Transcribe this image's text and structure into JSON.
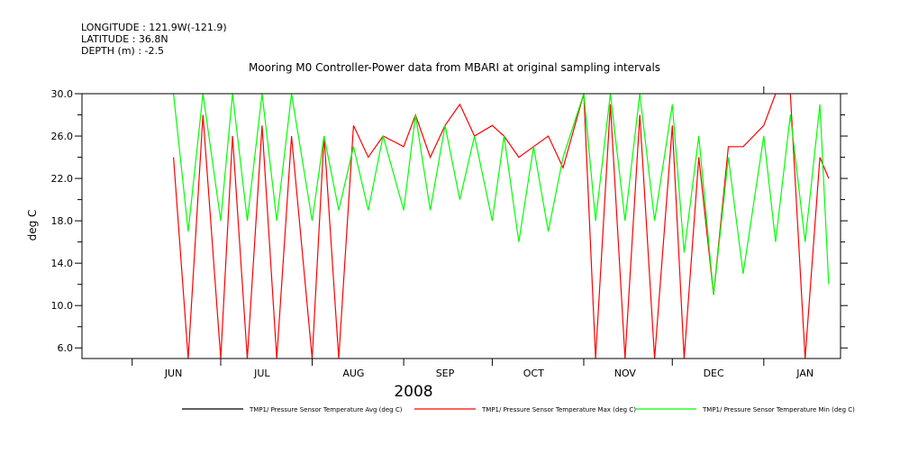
{
  "header": {
    "longitude": "LONGITUDE : 121.9W(-121.9)",
    "latitude": "LATITUDE : 36.8N",
    "depth": "DEPTH (m) : -2.5"
  },
  "chart_data": {
    "type": "line",
    "title": "Mooring M0 Controller-Power data from MBARI at original sampling intervals",
    "xlabel": "2008",
    "ylabel": "deg C",
    "ylim": [
      5,
      30
    ],
    "x_range": [
      "2008-05-15",
      "2009-01-27"
    ],
    "yticks": [
      "6.0",
      "10.0",
      "14.0",
      "18.0",
      "22.0",
      "26.0",
      "30.0"
    ],
    "xticks": [
      {
        "label": "JUN",
        "date": "2008-06-15"
      },
      {
        "label": "JUL",
        "date": "2008-07-15"
      },
      {
        "label": "AUG",
        "date": "2008-08-15"
      },
      {
        "label": "SEP",
        "date": "2008-09-15"
      },
      {
        "label": "OCT",
        "date": "2008-10-15"
      },
      {
        "label": "NOV",
        "date": "2008-11-15"
      },
      {
        "label": "DEC",
        "date": "2008-12-15"
      },
      {
        "label": "JAN",
        "date": "2009-01-15"
      }
    ],
    "legend_position": "bottom",
    "series": [
      {
        "name": "TMP1/ Pressure Sensor Temperature Avg (deg C)",
        "color": "#000000",
        "dates": [],
        "values": []
      },
      {
        "name": "TMP1/ Pressure Sensor Temperature Max (deg C)",
        "color": "#ff0000",
        "dates": [
          "2008-06-15",
          "2008-06-20",
          "2008-06-25",
          "2008-07-01",
          "2008-07-05",
          "2008-07-10",
          "2008-07-15",
          "2008-07-20",
          "2008-07-25",
          "2008-08-01",
          "2008-08-05",
          "2008-08-10",
          "2008-08-15",
          "2008-08-20",
          "2008-08-25",
          "2008-09-01",
          "2008-09-05",
          "2008-09-10",
          "2008-09-15",
          "2008-09-20",
          "2008-09-25",
          "2008-10-01",
          "2008-10-05",
          "2008-10-10",
          "2008-10-15",
          "2008-10-20",
          "2008-10-25",
          "2008-11-01",
          "2008-11-05",
          "2008-11-10",
          "2008-11-15",
          "2008-11-20",
          "2008-11-25",
          "2008-12-01",
          "2008-12-05",
          "2008-12-10",
          "2008-12-15",
          "2008-12-20",
          "2008-12-25",
          "2009-01-01",
          "2009-01-05",
          "2009-01-10",
          "2009-01-15",
          "2009-01-20",
          "2009-01-23"
        ],
        "values": [
          24,
          5,
          28,
          5,
          26,
          5,
          27,
          5,
          26,
          5,
          26,
          5,
          27,
          24,
          26,
          25,
          28,
          24,
          27,
          29,
          26,
          27,
          26,
          24,
          25,
          26,
          23,
          30,
          5,
          29,
          5,
          28,
          5,
          27,
          5,
          24,
          11,
          25,
          25,
          27,
          30,
          30,
          5,
          24,
          22
        ]
      },
      {
        "name": "TMP1/ Pressure Sensor Temperature Min (deg C)",
        "color": "#00ff00",
        "dates": [
          "2008-06-15",
          "2008-06-20",
          "2008-06-25",
          "2008-07-01",
          "2008-07-05",
          "2008-07-10",
          "2008-07-15",
          "2008-07-20",
          "2008-07-25",
          "2008-08-01",
          "2008-08-05",
          "2008-08-10",
          "2008-08-15",
          "2008-08-20",
          "2008-08-25",
          "2008-09-01",
          "2008-09-05",
          "2008-09-10",
          "2008-09-15",
          "2008-09-20",
          "2008-09-25",
          "2008-10-01",
          "2008-10-05",
          "2008-10-10",
          "2008-10-15",
          "2008-10-20",
          "2008-10-25",
          "2008-11-01",
          "2008-11-05",
          "2008-11-10",
          "2008-11-15",
          "2008-11-20",
          "2008-11-25",
          "2008-12-01",
          "2008-12-05",
          "2008-12-10",
          "2008-12-15",
          "2008-12-20",
          "2008-12-25",
          "2009-01-01",
          "2009-01-05",
          "2009-01-10",
          "2009-01-15",
          "2009-01-20",
          "2009-01-23"
        ],
        "values": [
          30,
          17,
          30,
          18,
          30,
          18,
          30,
          18,
          30,
          18,
          26,
          19,
          25,
          19,
          26,
          19,
          28,
          19,
          27,
          20,
          26,
          18,
          26,
          16,
          25,
          17,
          24,
          30,
          18,
          30,
          18,
          30,
          18,
          29,
          15,
          26,
          11,
          24,
          13,
          26,
          16,
          28,
          16,
          29,
          12
        ]
      }
    ]
  }
}
